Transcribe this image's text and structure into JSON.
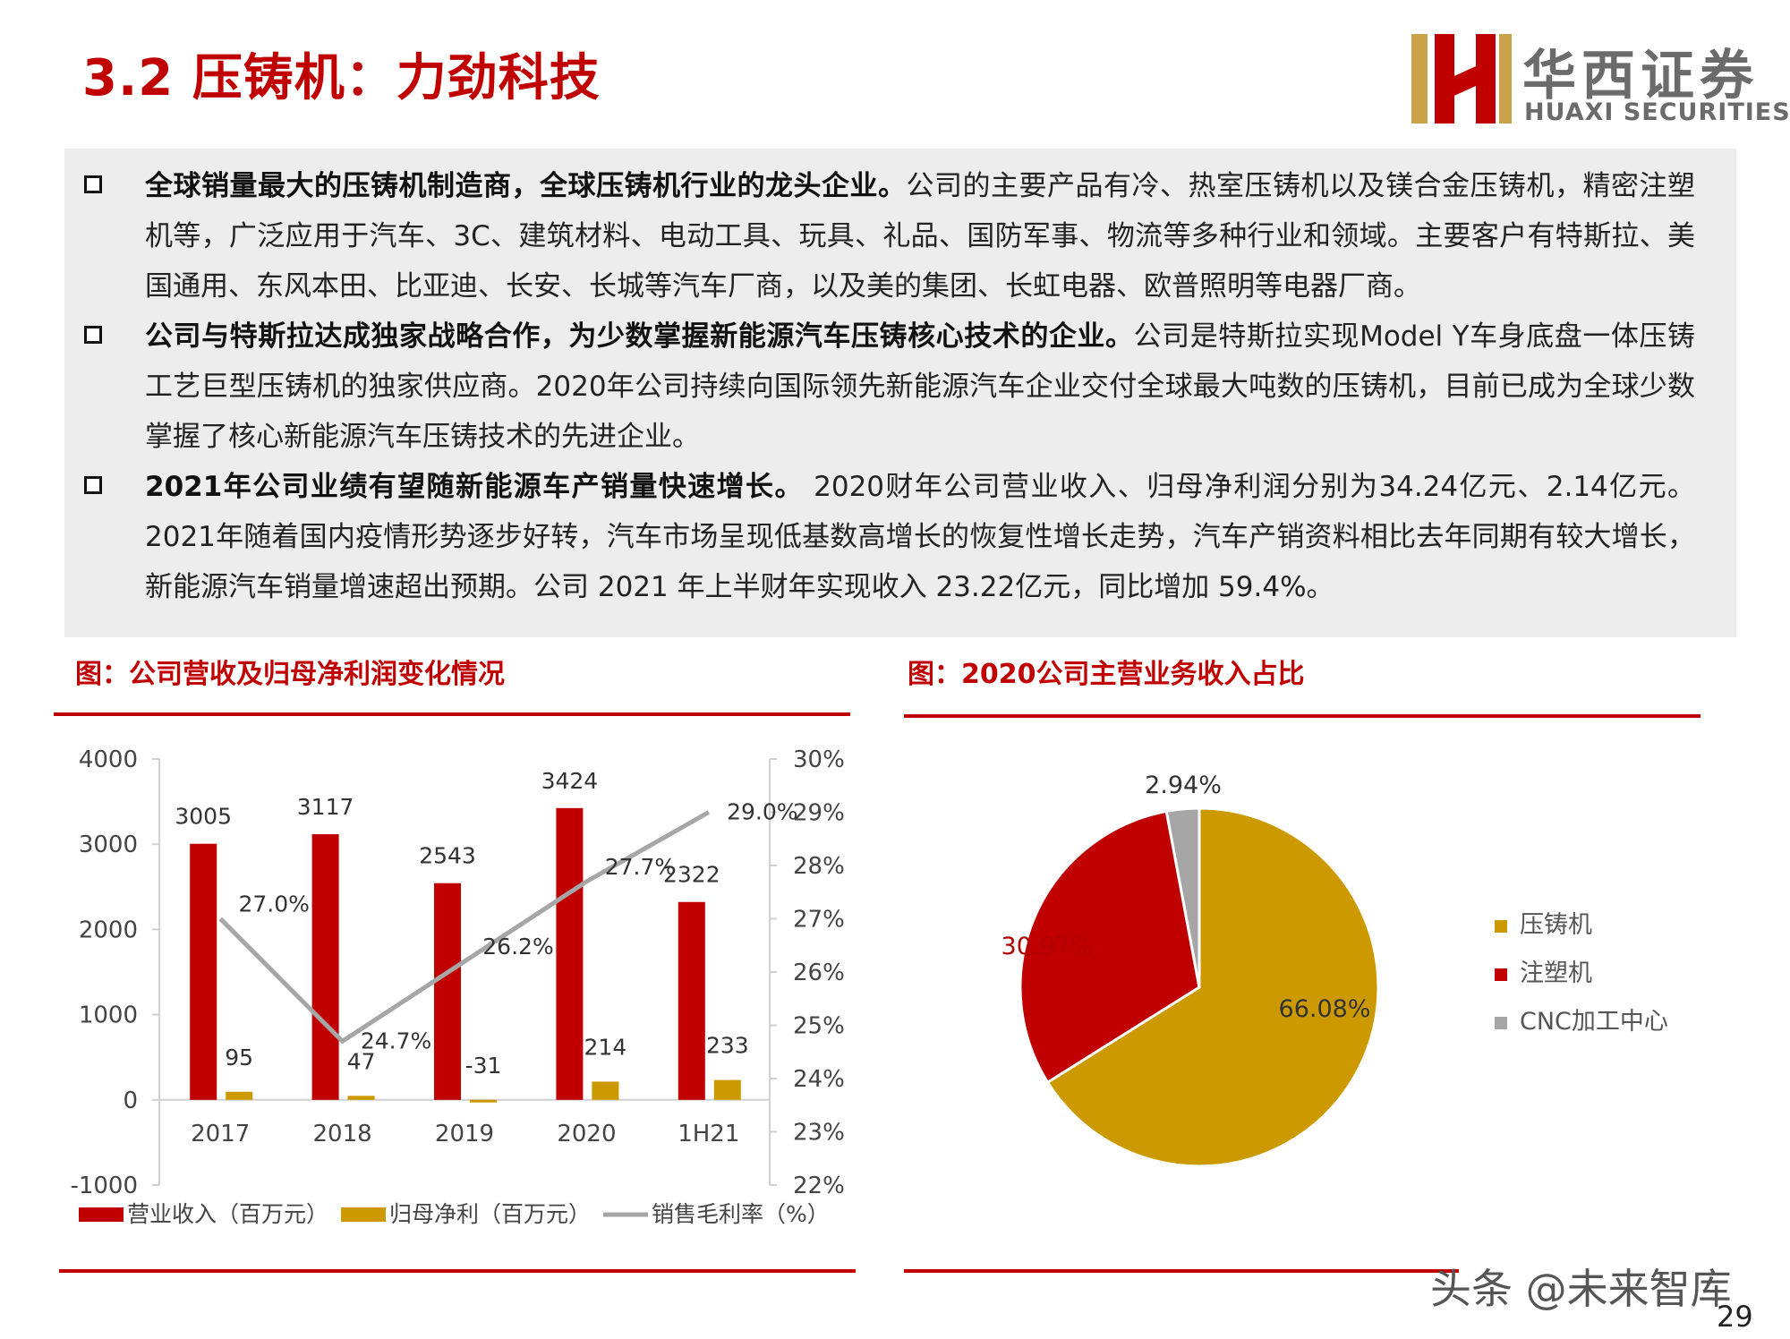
{
  "header": {
    "title": "3.2 压铸机：力劲科技",
    "logo_cn": "华西证券",
    "logo_en": "HUAXI SECURITIES"
  },
  "bullets": [
    {
      "bold": "全球销量最大的压铸机制造商，全球压铸机行业的龙头企业。",
      "text": "公司的主要产品有冷、热室压铸机以及镁合金压铸机，精密注塑机等，广泛应用于汽车、3C、建筑材料、电动工具、玩具、礼品、国防军事、物流等多种行业和领域。主要客户有特斯拉、美国通用、东风本田、比亚迪、长安、长城等汽车厂商，以及美的集团、长虹电器、欧普照明等电器厂商。"
    },
    {
      "bold": "公司与特斯拉达成独家战略合作，为少数掌握新能源汽车压铸核心技术的企业。",
      "text": "公司是特斯拉实现Model Y车身底盘一体压铸工艺巨型压铸机的独家供应商。2020年公司持续向国际领先新能源汽车企业交付全球最大吨数的压铸机，目前已成为全球少数掌握了核心新能源汽车压铸技术的先进企业。"
    },
    {
      "bold": "2021年公司业绩有望随新能源车产销量快速增长。",
      "text": " 2020财年公司营业收入、归母净利润分别为34.24亿元、2.14亿元。2021年随着国内疫情形势逐步好转，汽车市场呈现低基数高增长的恢复性增长走势，汽车产销资料相比去年同期有较大增长，新能源汽车销量增速超出预期。公司 2021 年上半财年实现收入 23.22亿元，同比增加 59.4%。"
    }
  ],
  "chart_left_title": "图：公司营收及归母净利润变化情况",
  "chart_right_title": "图：2020公司主营业务收入占比",
  "chart_data": [
    {
      "type": "bar",
      "categories": [
        "2017",
        "2018",
        "2019",
        "2020",
        "1H21"
      ],
      "series": [
        {
          "name": "营业收入（百万元）",
          "type": "bar",
          "axis": "left",
          "color": "#c00000",
          "values": [
            3005,
            3117,
            2543,
            3424,
            2322
          ],
          "labels": [
            "3005",
            "3117",
            "2543",
            "3424",
            "2322"
          ]
        },
        {
          "name": "归母净利（百万元）",
          "type": "bar",
          "axis": "left",
          "color": "#cc9a00",
          "values": [
            95,
            47,
            -31,
            214,
            233
          ],
          "labels": [
            "95",
            "47",
            "-31",
            "214",
            "233"
          ]
        },
        {
          "name": "销售毛利率（%）",
          "type": "line",
          "axis": "right",
          "color": "#a6a6a6",
          "values": [
            27.0,
            24.7,
            26.2,
            27.7,
            29.0
          ],
          "labels": [
            "27.0%",
            "24.7%",
            "26.2%",
            "27.7%",
            "29.0%"
          ]
        }
      ],
      "y_left": {
        "min": -1000,
        "max": 4000,
        "ticks": [
          "4000",
          "3000",
          "2000",
          "1000",
          "0",
          "-1000"
        ]
      },
      "y_right": {
        "min": 22,
        "max": 30,
        "ticks": [
          "30%",
          "29%",
          "28%",
          "27%",
          "26%",
          "25%",
          "24%",
          "23%",
          "22%"
        ]
      },
      "legend": "bottom"
    },
    {
      "type": "pie",
      "slices": [
        {
          "name": "压铸机",
          "value": 66.08,
          "label": "66.08%",
          "color": "#cc9a00"
        },
        {
          "name": "注塑机",
          "value": 30.97,
          "label": "30.97%",
          "color": "#c00000"
        },
        {
          "name": "CNC加工中心",
          "value": 2.94,
          "label": "2.94%",
          "color": "#a6a6a6"
        }
      ],
      "legend": "right"
    }
  ],
  "footer": {
    "watermark": "头条 @未来智库",
    "page_number": "29"
  }
}
